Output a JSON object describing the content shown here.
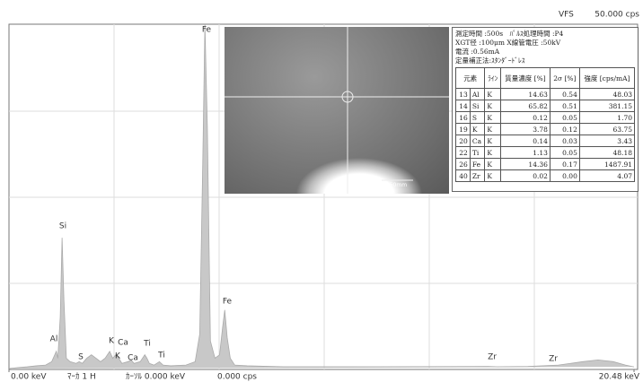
{
  "chart_data": {
    "type": "spectrum",
    "x": [
      0,
      0.3,
      0.6,
      0.9,
      1.2,
      1.4,
      1.5,
      1.55,
      1.6,
      1.68,
      1.74,
      1.8,
      1.88,
      2.0,
      2.2,
      2.3,
      2.4,
      2.55,
      2.7,
      2.85,
      3.0,
      3.15,
      3.3,
      3.4,
      3.5,
      3.6,
      3.7,
      3.9,
      4.0,
      4.1,
      4.3,
      4.45,
      4.52,
      4.6,
      4.75,
      4.93,
      5.05,
      5.3,
      5.8,
      6.1,
      6.25,
      6.35,
      6.42,
      6.5,
      6.6,
      6.75,
      6.9,
      7.0,
      7.07,
      7.15,
      7.25,
      7.4,
      7.8,
      9,
      12,
      15.7,
      16,
      17,
      18,
      18.8,
      19.3,
      19.8,
      20.2,
      20.48
    ],
    "values": [
      0,
      0.3,
      0.5,
      0.8,
      1,
      2,
      4,
      5,
      3,
      15,
      38,
      20,
      3,
      2,
      1.5,
      2,
      1.5,
      3,
      4,
      3,
      2,
      3,
      5,
      3,
      4,
      3,
      1.5,
      2,
      2.5,
      1.5,
      2,
      4,
      3,
      1.5,
      1,
      2,
      1,
      0.8,
      1,
      2,
      10,
      60,
      100,
      70,
      8,
      3,
      4,
      12,
      17,
      9,
      3,
      1,
      0.8,
      0.5,
      0.5,
      0.6,
      0.5,
      0.6,
      1,
      2,
      2.5,
      2,
      1,
      0.5
    ],
    "xlim": [
      0,
      20.48
    ],
    "ylim": [
      0,
      100
    ],
    "xticks": [
      {
        "value": 0,
        "label": "0.00 keV"
      },
      {
        "value": 20.48,
        "label": "20.48 keV"
      }
    ],
    "color": "#c8c8c8"
  },
  "header": {
    "mode": "VFS",
    "full_scale": "50.000 cps"
  },
  "peak_labels": [
    "Fe",
    "Si",
    "Fe",
    "Al",
    "S",
    "K",
    "Ca",
    "K",
    "Ca",
    "Ti",
    "Ti",
    "Zr",
    "Zr"
  ],
  "inset": {
    "scale": "0.50mm"
  },
  "results": {
    "info": [
      "測定時間 :500s　ﾊﾟﾙｽ処理時間 :P4",
      "XGT径 :100μm X線管電圧 :50kV",
      "電流 :0.56mA",
      "定量補正法:ｽﾀﾝﾀﾞｰﾄﾞﾚｽ"
    ],
    "columns": [
      "元素",
      "ﾗｲﾝ",
      "質量濃度 [%]",
      "2σ [%]",
      "強度 [cps/mA]"
    ],
    "rows": [
      [
        "13",
        "Al",
        "K",
        "14.63",
        "0.54",
        "48.03"
      ],
      [
        "14",
        "Si",
        "K",
        "65.82",
        "0.51",
        "381.15"
      ],
      [
        "16",
        "S",
        "K",
        "0.12",
        "0.05",
        "1.70"
      ],
      [
        "19",
        "K",
        "K",
        "3.78",
        "0.12",
        "63.75"
      ],
      [
        "20",
        "Ca",
        "K",
        "0.14",
        "0.03",
        "3.43"
      ],
      [
        "22",
        "Ti",
        "K",
        "1.13",
        "0.05",
        "48.18"
      ],
      [
        "26",
        "Fe",
        "K",
        "14.36",
        "0.17",
        "1487.91"
      ],
      [
        "40",
        "Zr",
        "K",
        "0.02",
        "0.00",
        "4.07"
      ]
    ]
  },
  "status": {
    "marker": "ﾏｰｶ 1 H",
    "cursor": "ｶｰｿﾙ 0.000 keV",
    "cursor_cps": "0.000 cps"
  }
}
